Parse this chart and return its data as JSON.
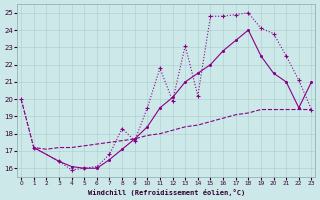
{
  "bg_color": "#cce8e8",
  "line_color": "#880088",
  "xlim": [
    -0.3,
    23.3
  ],
  "ylim": [
    15.5,
    25.5
  ],
  "xticks": [
    0,
    1,
    2,
    3,
    4,
    5,
    6,
    7,
    8,
    9,
    10,
    11,
    12,
    13,
    14,
    15,
    16,
    17,
    18,
    19,
    20,
    21,
    22,
    23
  ],
  "yticks": [
    16,
    17,
    18,
    19,
    20,
    21,
    22,
    23,
    24,
    25
  ],
  "xlabel": "Windchill (Refroidissement éolien,°C)",
  "curve1_x": [
    0,
    1,
    3,
    4,
    5,
    6,
    7,
    8,
    9,
    10,
    11,
    12,
    13,
    14,
    15,
    16,
    17,
    18,
    19,
    20,
    21,
    22,
    23
  ],
  "curve1_y": [
    20.0,
    17.2,
    16.4,
    15.9,
    16.0,
    16.1,
    16.8,
    18.3,
    17.6,
    19.5,
    21.8,
    19.9,
    23.1,
    20.2,
    24.8,
    24.8,
    24.9,
    25.0,
    24.1,
    23.8,
    22.5,
    21.1,
    19.4
  ],
  "curve2_x": [
    1,
    3,
    4,
    5,
    6,
    7,
    8,
    9,
    10,
    11,
    12,
    13,
    14,
    15,
    16,
    17,
    18,
    19,
    20,
    21,
    22,
    23
  ],
  "curve2_y": [
    17.2,
    16.4,
    16.1,
    16.0,
    16.0,
    16.5,
    17.1,
    17.7,
    18.4,
    19.5,
    20.1,
    21.0,
    21.5,
    22.0,
    22.8,
    23.4,
    24.0,
    22.5,
    21.5,
    21.0,
    19.5,
    21.0
  ],
  "curve3_x": [
    0,
    1,
    2,
    3,
    4,
    5,
    6,
    7,
    8,
    9,
    10,
    11,
    12,
    13,
    14,
    15,
    16,
    17,
    18,
    19,
    20,
    21,
    22,
    23
  ],
  "curve3_y": [
    20.0,
    17.2,
    17.1,
    17.2,
    17.2,
    17.3,
    17.4,
    17.5,
    17.6,
    17.7,
    17.9,
    18.0,
    18.2,
    18.4,
    18.5,
    18.7,
    18.9,
    19.1,
    19.2,
    19.4,
    19.4,
    19.4,
    19.4,
    19.4
  ]
}
